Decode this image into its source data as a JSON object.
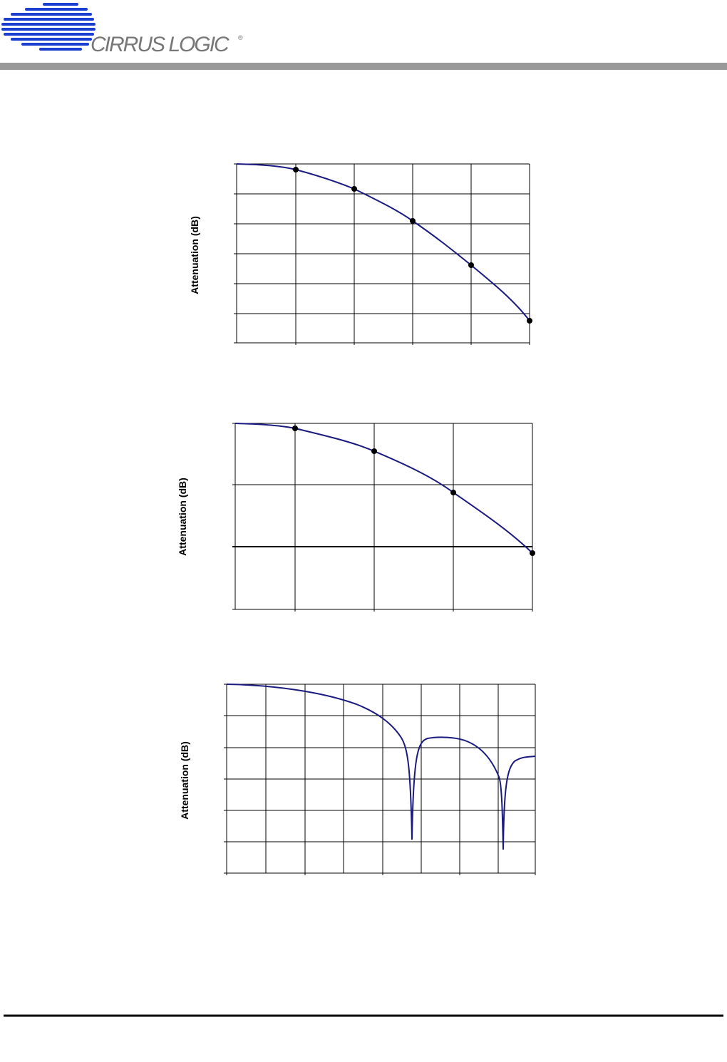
{
  "header": {
    "logo_text": "CIRRUS LOGIC",
    "registered": "®"
  },
  "figures": [
    {
      "y_axis_label": "Attenuation (dB)"
    },
    {
      "y_axis_label": "Attenuation (dB)"
    },
    {
      "y_axis_label": "Attenuation (dB)"
    }
  ]
}
